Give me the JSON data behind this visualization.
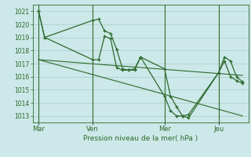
{
  "xlabel": "Pression niveau de la mer( hPa )",
  "background_color": "#cce8e8",
  "grid_color": "#aacccc",
  "line_color": "#2d6a2d",
  "ylim": [
    1012.5,
    1021.5
  ],
  "yticks": [
    1013,
    1014,
    1015,
    1016,
    1017,
    1018,
    1019,
    1020,
    1021
  ],
  "day_labels": [
    "Mar",
    "Ven",
    "Mer",
    "Jeu"
  ],
  "day_positions": [
    0,
    9,
    21,
    30
  ],
  "series1_x": [
    0,
    1,
    9,
    10,
    11,
    12,
    13,
    14,
    15,
    16,
    17,
    21,
    22,
    23,
    24,
    25,
    30,
    31,
    32,
    33,
    34
  ],
  "series1_y": [
    1021.0,
    1019.0,
    1020.3,
    1020.4,
    1019.5,
    1019.3,
    1018.1,
    1016.6,
    1016.5,
    1016.5,
    1017.5,
    1016.6,
    1014.5,
    1013.7,
    1013.0,
    1012.85,
    1016.3,
    1017.5,
    1017.2,
    1016.0,
    1015.6
  ],
  "series2_x": [
    0,
    1,
    9,
    10,
    11,
    12,
    13,
    14,
    15,
    16,
    17,
    21,
    22,
    23,
    24,
    25,
    30,
    31,
    32,
    33,
    34
  ],
  "series2_y": [
    1021.0,
    1019.0,
    1017.3,
    1017.3,
    1019.1,
    1018.9,
    1016.7,
    1016.5,
    1016.5,
    1016.6,
    1017.5,
    1014.5,
    1013.4,
    1013.0,
    1013.0,
    1013.1,
    1016.3,
    1017.2,
    1016.0,
    1015.7,
    1015.5
  ],
  "trend1_x": [
    0,
    34
  ],
  "trend1_y": [
    1017.3,
    1016.1
  ],
  "trend2_x": [
    0,
    34
  ],
  "trend2_y": [
    1017.3,
    1013.0
  ],
  "xlim": [
    -1,
    35
  ]
}
